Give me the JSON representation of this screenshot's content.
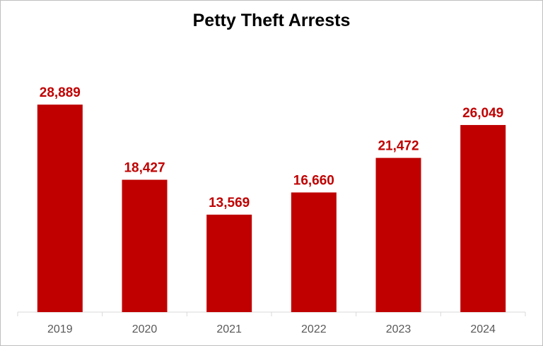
{
  "chart_data": {
    "type": "bar",
    "title": "Petty Theft Arrests",
    "categories": [
      "2019",
      "2020",
      "2021",
      "2022",
      "2023",
      "2024"
    ],
    "values": [
      28889,
      18427,
      13569,
      16660,
      21472,
      26049
    ],
    "data_labels": [
      "28,889",
      "18,427",
      "13,569",
      "16,660",
      "21,472",
      "26,049"
    ],
    "xlabel": "",
    "ylabel": "",
    "ylim": [
      0,
      35000
    ],
    "y_axis_visible": false,
    "grid": false,
    "legend": "none",
    "bar_color": "#c00000",
    "label_color": "#c00000"
  }
}
